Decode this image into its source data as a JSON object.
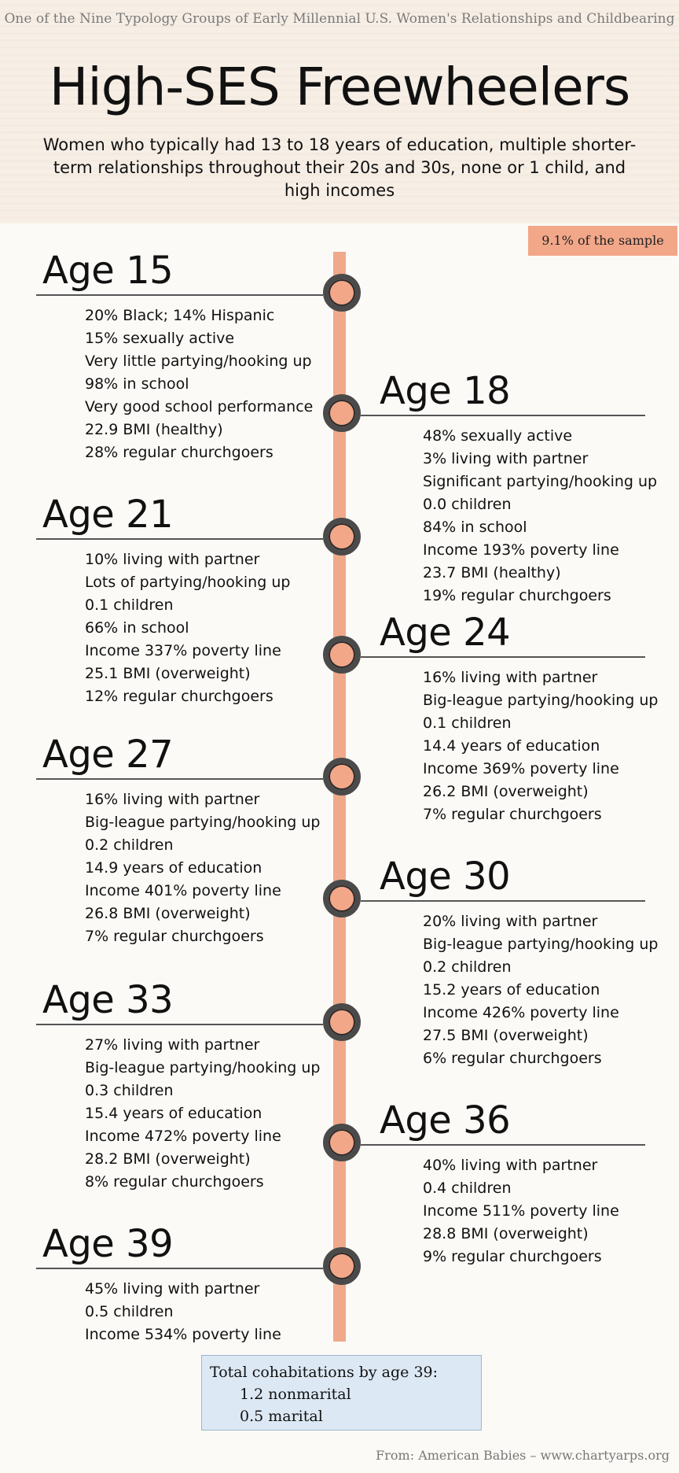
{
  "header": {
    "supertitle": "One of the Nine Typology Groups of Early Millennial U.S. Women's Relationships and Childbearing",
    "title": "High-SES Freewheelers",
    "subtitle": "Women who typically had 13 to 18 years of education, multiple shorter-term relationships throughout their 20s and 30s, none or 1 child, and high incomes"
  },
  "badge": "9.1% of the sample",
  "timeline": [
    {
      "age": "Age 15",
      "facts": [
        "20% Black; 14% Hispanic",
        "15% sexually active",
        "Very little partying/hooking up",
        "98% in school",
        "Very good school performance",
        "22.9 BMI (healthy)",
        "28% regular churchgoers"
      ]
    },
    {
      "age": "Age 18",
      "facts": [
        "48% sexually active",
        "3% living with partner",
        "Significant partying/hooking up",
        "0.0 children",
        "84% in school",
        "Income 193% poverty line",
        "23.7 BMI (healthy)",
        "19% regular churchgoers"
      ]
    },
    {
      "age": "Age 21",
      "facts": [
        "10% living with partner",
        "Lots of partying/hooking up",
        "0.1 children",
        "66% in school",
        "Income 337% poverty line",
        "25.1 BMI (overweight)",
        "12% regular churchgoers"
      ]
    },
    {
      "age": "Age 24",
      "facts": [
        "16% living with partner",
        "Big-league partying/hooking up",
        "0.1 children",
        "14.4 years of education",
        "Income 369% poverty line",
        "26.2 BMI (overweight)",
        "7% regular churchgoers"
      ]
    },
    {
      "age": "Age 27",
      "facts": [
        "16% living with partner",
        "Big-league partying/hooking up",
        "0.2 children",
        "14.9 years of education",
        "Income 401% poverty line",
        "26.8 BMI (overweight)",
        "7% regular churchgoers"
      ]
    },
    {
      "age": "Age 30",
      "facts": [
        "20% living with partner",
        "Big-league partying/hooking up",
        "0.2 children",
        "15.2 years of education",
        "Income 426% poverty line",
        "27.5 BMI (overweight)",
        "6% regular churchgoers"
      ]
    },
    {
      "age": "Age 33",
      "facts": [
        "27% living with partner",
        "Big-league partying/hooking up",
        "0.3 children",
        "15.4 years of education",
        "Income 472% poverty line",
        "28.2 BMI (overweight)",
        "8% regular churchgoers"
      ]
    },
    {
      "age": "Age 36",
      "facts": [
        "40% living with partner",
        "0.4 children",
        "Income 511% poverty line",
        "28.8 BMI (overweight)",
        "9% regular churchgoers"
      ]
    },
    {
      "age": "Age 39",
      "facts": [
        "45% living with partner",
        "0.5 children",
        "Income 534% poverty line"
      ]
    }
  ],
  "totals": {
    "title": "Total cohabitations by age 39:",
    "nonmarital": "1.2 nonmarital",
    "marital": "0.5 marital"
  },
  "source": "From: American Babies – www.chartyarps.org",
  "colors": {
    "accent": "#f2a789",
    "spine": "#f0a98b",
    "node_ring": "#4a4a4a",
    "totals_bg": "#dce8f4"
  }
}
